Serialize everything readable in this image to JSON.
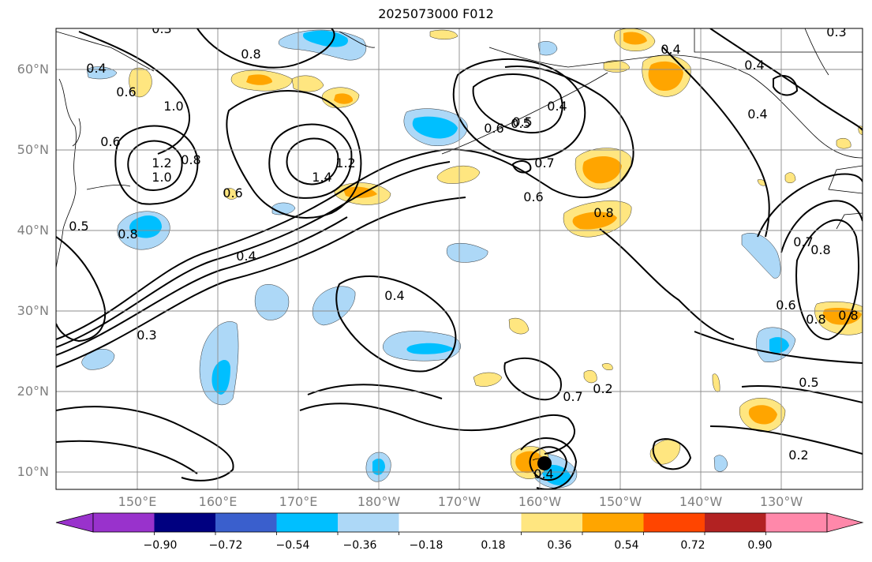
{
  "title": "2025073000 F012",
  "map": {
    "lat_labels": [
      "60°N",
      "50°N",
      "40°N",
      "30°N",
      "20°N",
      "10°N"
    ],
    "lon_labels": [
      "150°E",
      "160°E",
      "170°E",
      "180°W",
      "170°W",
      "160°W",
      "150°W",
      "140°W",
      "130°W"
    ],
    "contour_labels": [
      "0.3",
      "0.4",
      "0.8",
      "0.4",
      "0.5",
      "0.6",
      "1.0",
      "1.2",
      "1.0",
      "1.4",
      "1.2",
      "0.6",
      "0.8",
      "0.6",
      "0.5",
      "0.4",
      "0.6",
      "0.7",
      "0.6",
      "0.8",
      "0.4",
      "0.4",
      "0.3",
      "0.5",
      "0.8",
      "0.8",
      "0.7",
      "0.4",
      "0.3",
      "0.4",
      "0.2",
      "0.7",
      "0.8",
      "0.6",
      "0.8",
      "0.5",
      "0.2",
      "0.4"
    ],
    "colors": {
      "fill_neg_strong": "#00bfff",
      "fill_neg_light": "#add8f7",
      "fill_pos_light": "#ffe680",
      "fill_pos_strong": "#ffa500",
      "grid": "#8c8c8c",
      "contour": "#000000",
      "coastline": "#000000"
    }
  },
  "colorbar": {
    "ticks": [
      "−0.90",
      "−0.72",
      "−0.54",
      "−0.36",
      "−0.18",
      "0.18",
      "0.36",
      "0.54",
      "0.72",
      "0.90"
    ],
    "segments": [
      {
        "lo": -0.9,
        "hi": -0.72,
        "color": "#000080"
      },
      {
        "lo": -0.72,
        "hi": -0.54,
        "color": "#3a5fcd"
      },
      {
        "lo": -0.54,
        "hi": -0.36,
        "color": "#00bfff"
      },
      {
        "lo": -0.36,
        "hi": -0.18,
        "color": "#add8f7"
      },
      {
        "lo": -0.18,
        "hi": 0.18,
        "color": "#ffffff"
      },
      {
        "lo": 0.18,
        "hi": 0.36,
        "color": "#ffe680"
      },
      {
        "lo": 0.36,
        "hi": 0.54,
        "color": "#ffa500"
      },
      {
        "lo": 0.54,
        "hi": 0.72,
        "color": "#ff4500"
      },
      {
        "lo": 0.72,
        "hi": 0.9,
        "color": "#b22222"
      }
    ],
    "under_color": "#9932cc",
    "over_color": "#ff88aa"
  }
}
